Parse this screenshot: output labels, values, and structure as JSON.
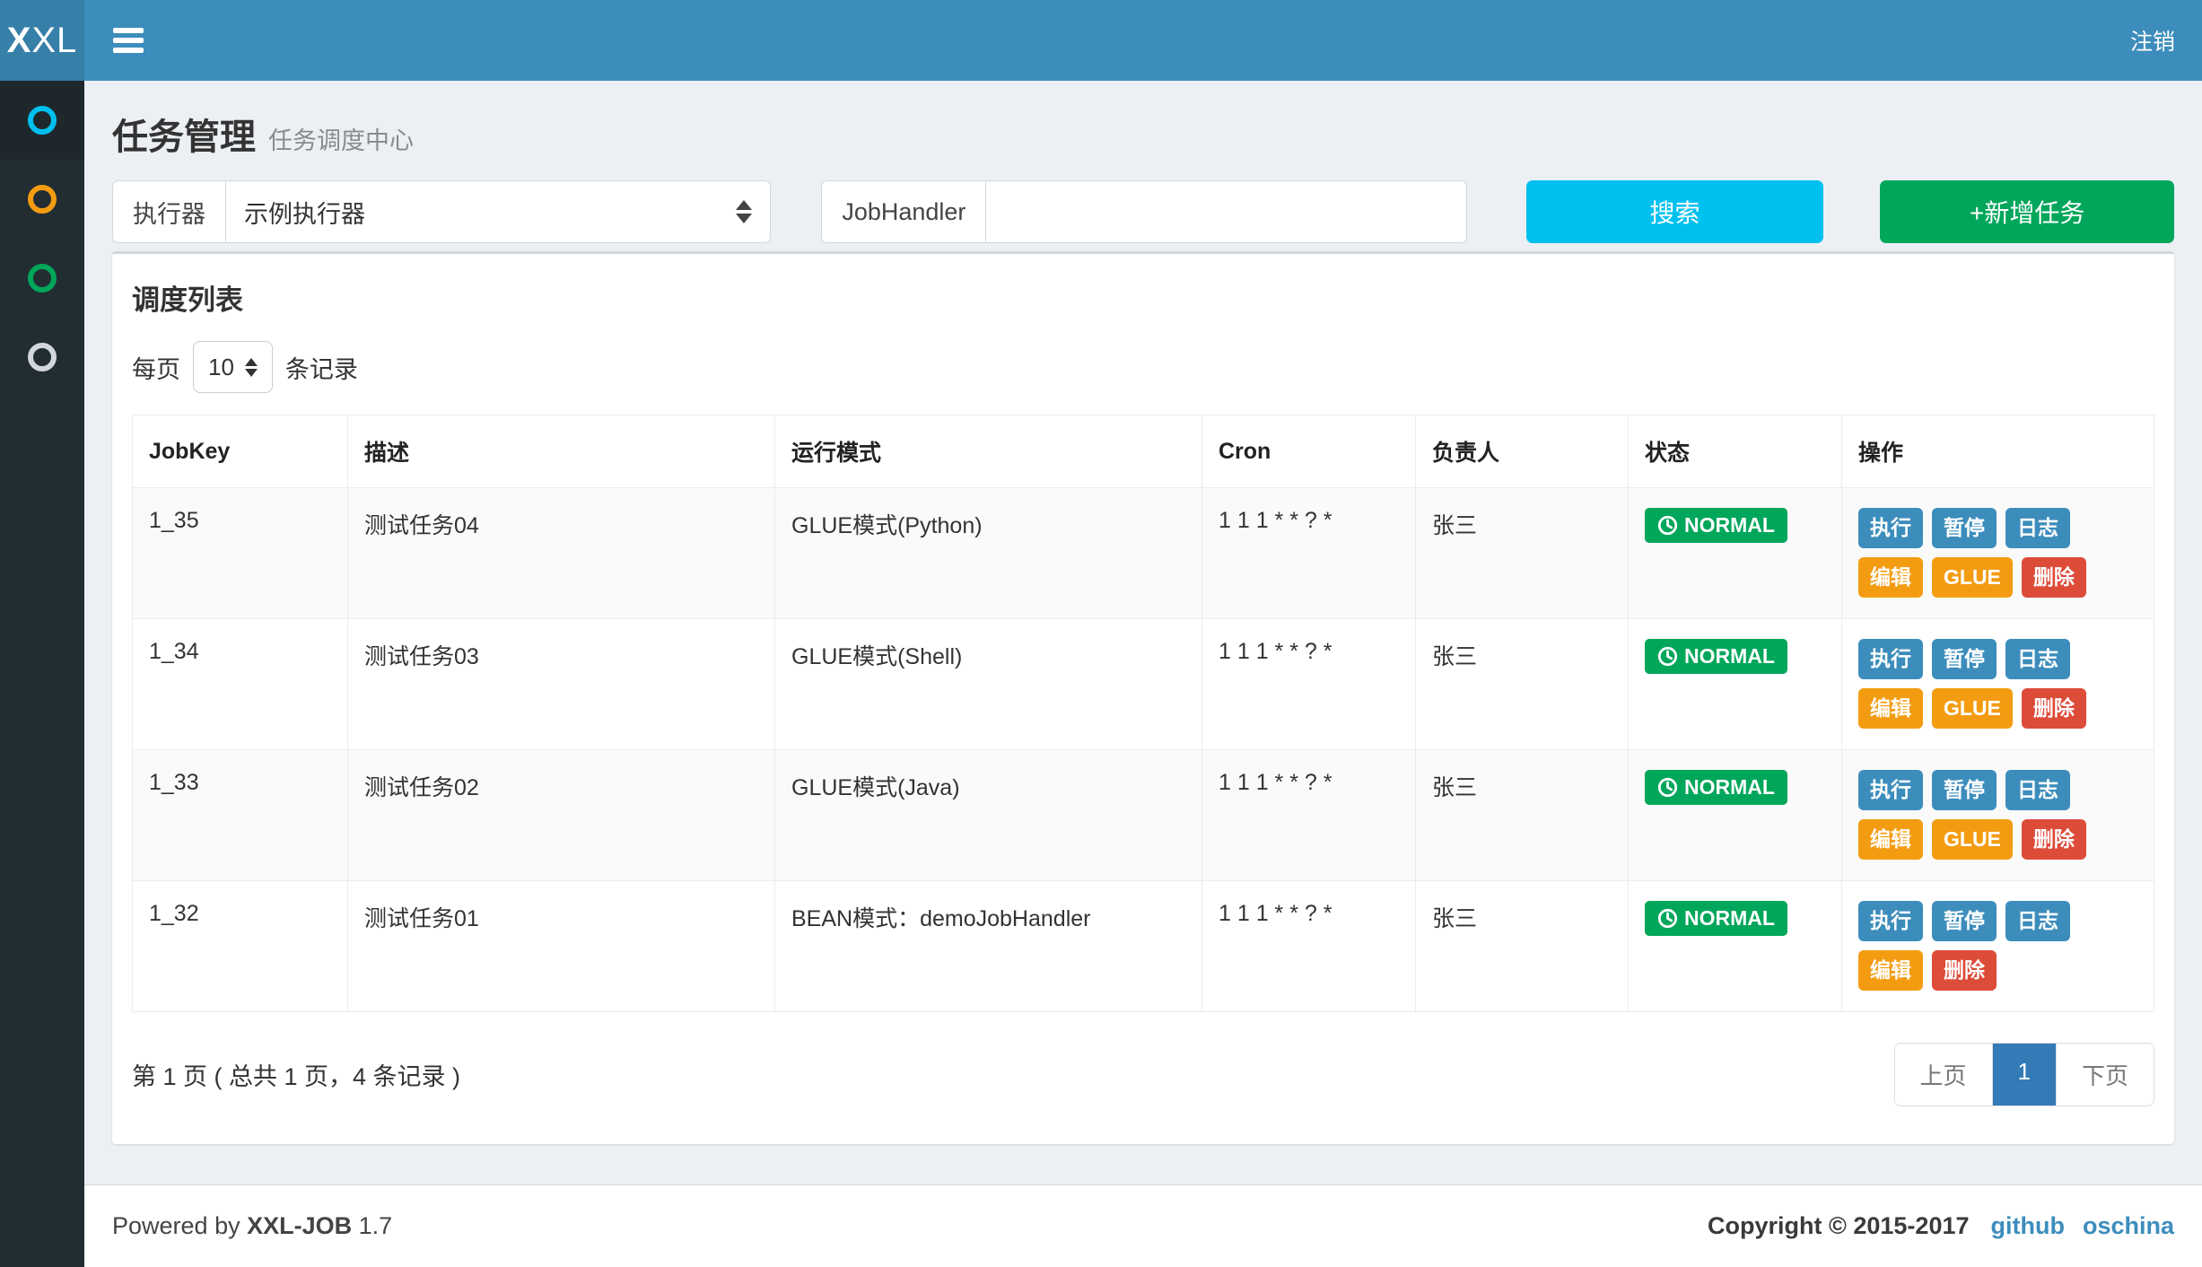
{
  "navbar": {
    "logo_bold": "X",
    "logo_rest": "XL",
    "logout_label": "注销"
  },
  "sidebar": {
    "items": [
      {
        "id": "1",
        "active": true,
        "icon": "circle-icon",
        "icon_color": "#00c0ef"
      },
      {
        "id": "2",
        "active": false,
        "icon": "circle-icon",
        "icon_color": "#f39c12"
      },
      {
        "id": "3",
        "active": false,
        "icon": "circle-icon",
        "icon_color": "#00a65a"
      },
      {
        "id": "4",
        "active": false,
        "icon": "circle-icon",
        "icon_color": "#d2d6de"
      }
    ]
  },
  "page_header": {
    "title": "任务管理",
    "subtitle": "任务调度中心"
  },
  "filters": {
    "executor_label": "执行器",
    "executor_value": "示例执行器",
    "jobhandler_label": "JobHandler",
    "jobhandler_value": "",
    "search_button": "搜索",
    "add_button": "+新增任务"
  },
  "list_box": {
    "title": "调度列表",
    "page_size_prefix": "每页",
    "page_size_value": "10",
    "page_size_suffix": "条记录",
    "table": {
      "headers": [
        "JobKey",
        "描述",
        "运行模式",
        "Cron",
        "负责人",
        "状态",
        "操作"
      ],
      "rows": [
        {
          "jobkey": "1_35",
          "description": "测试任务04",
          "mode": "GLUE模式(Python)",
          "cron": "1 1 1 * * ? *",
          "owner": "张三",
          "status": "NORMAL",
          "ops": [
            {
              "label": "执行",
              "name": "trigger-button",
              "type": "primary"
            },
            {
              "label": "暂停",
              "name": "pause-button",
              "type": "primary"
            },
            {
              "label": "日志",
              "name": "log-button",
              "type": "primary"
            },
            {
              "label": "编辑",
              "name": "edit-button",
              "type": "warning"
            },
            {
              "label": "GLUE",
              "name": "glue-button",
              "type": "warning"
            },
            {
              "label": "删除",
              "name": "delete-button",
              "type": "danger"
            }
          ]
        },
        {
          "jobkey": "1_34",
          "description": "测试任务03",
          "mode": "GLUE模式(Shell)",
          "cron": "1 1 1 * * ? *",
          "owner": "张三",
          "status": "NORMAL",
          "ops": [
            {
              "label": "执行",
              "name": "trigger-button",
              "type": "primary"
            },
            {
              "label": "暂停",
              "name": "pause-button",
              "type": "primary"
            },
            {
              "label": "日志",
              "name": "log-button",
              "type": "primary"
            },
            {
              "label": "编辑",
              "name": "edit-button",
              "type": "warning"
            },
            {
              "label": "GLUE",
              "name": "glue-button",
              "type": "warning"
            },
            {
              "label": "删除",
              "name": "delete-button",
              "type": "danger"
            }
          ]
        },
        {
          "jobkey": "1_33",
          "description": "测试任务02",
          "mode": "GLUE模式(Java)",
          "cron": "1 1 1 * * ? *",
          "owner": "张三",
          "status": "NORMAL",
          "ops": [
            {
              "label": "执行",
              "name": "trigger-button",
              "type": "primary"
            },
            {
              "label": "暂停",
              "name": "pause-button",
              "type": "primary"
            },
            {
              "label": "日志",
              "name": "log-button",
              "type": "primary"
            },
            {
              "label": "编辑",
              "name": "edit-button",
              "type": "warning"
            },
            {
              "label": "GLUE",
              "name": "glue-button",
              "type": "warning"
            },
            {
              "label": "删除",
              "name": "delete-button",
              "type": "danger"
            }
          ]
        },
        {
          "jobkey": "1_32",
          "description": "测试任务01",
          "mode": "BEAN模式：demoJobHandler",
          "cron": "1 1 1 * * ? *",
          "owner": "张三",
          "status": "NORMAL",
          "ops": [
            {
              "label": "执行",
              "name": "trigger-button",
              "type": "primary"
            },
            {
              "label": "暂停",
              "name": "pause-button",
              "type": "primary"
            },
            {
              "label": "日志",
              "name": "log-button",
              "type": "primary"
            },
            {
              "label": "编辑",
              "name": "edit-button",
              "type": "warning"
            },
            {
              "label": "删除",
              "name": "delete-button",
              "type": "danger"
            }
          ]
        }
      ]
    },
    "pagination": {
      "info": "第 1 页 ( 总共 1 页，4 条记录 )",
      "prev": "上页",
      "current": "1",
      "next": "下页"
    }
  },
  "footer": {
    "powered_by": "Powered by",
    "product": "XXL-JOB",
    "version": "1.7",
    "copyright": "Copyright © 2015-2017",
    "links": [
      {
        "label": "github"
      },
      {
        "label": "oschina"
      }
    ]
  },
  "colors": {
    "navbar_bg": "#3c8dbc",
    "logo_bg": "#367fa9",
    "sidebar_bg": "#222d32",
    "sidebar_active_bg": "#1e282c",
    "body_bg": "#ecf0f5",
    "primary": "#3c8dbc",
    "info": "#00c0ef",
    "success": "#00a65a",
    "warning": "#f39c12",
    "danger": "#dd4b39",
    "pager_active": "#337ab7"
  }
}
